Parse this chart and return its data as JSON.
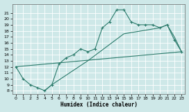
{
  "xlabel": "Humidex (Indice chaleur)",
  "bg_color": "#cee8e8",
  "grid_color": "#ffffff",
  "line_color": "#2a7a6a",
  "line1_x": [
    0,
    1,
    2,
    3,
    4,
    5,
    6,
    7,
    8,
    9,
    10,
    11,
    12,
    13,
    14,
    15,
    16,
    17,
    18,
    19,
    20,
    21,
    22,
    23
  ],
  "line1_y": [
    12,
    10,
    9,
    8.5,
    8,
    9,
    12.5,
    13.5,
    14,
    15,
    14.5,
    15,
    18.5,
    19.5,
    21.5,
    21.5,
    19.5,
    19,
    19,
    19,
    18.5,
    19,
    16.5,
    14.5
  ],
  "line2_x": [
    0,
    23
  ],
  "line2_y": [
    12,
    14.5
  ],
  "line3_x": [
    4,
    5,
    10,
    15,
    20,
    21,
    22,
    23
  ],
  "line3_y": [
    8,
    9,
    13,
    17.5,
    18.5,
    19,
    17,
    14.5
  ],
  "xlim": [
    -0.5,
    23.5
  ],
  "ylim": [
    7.5,
    22.5
  ],
  "yticks": [
    8,
    9,
    10,
    11,
    12,
    13,
    14,
    15,
    16,
    17,
    18,
    19,
    20,
    21
  ],
  "xticks": [
    0,
    1,
    2,
    3,
    4,
    5,
    6,
    7,
    8,
    9,
    10,
    11,
    12,
    13,
    14,
    15,
    16,
    17,
    18,
    19,
    20,
    21,
    22,
    23
  ]
}
